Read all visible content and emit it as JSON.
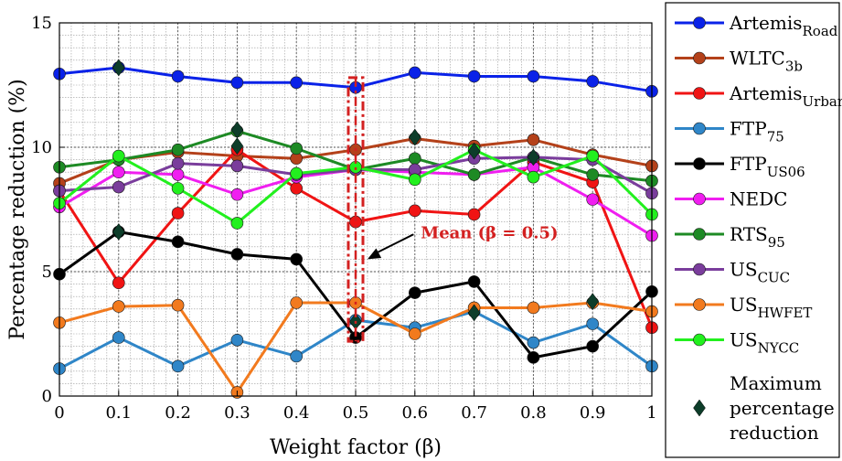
{
  "chart_data": {
    "type": "line",
    "xlabel": "Weight factor (β)",
    "ylabel": "Percentage reduction (%)",
    "xlim": [
      0,
      1
    ],
    "ylim": [
      0,
      15
    ],
    "grid": true,
    "legend_position": "right",
    "x": [
      0,
      0.1,
      0.2,
      0.3,
      0.4,
      0.5,
      0.6,
      0.7,
      0.8,
      0.9,
      1
    ],
    "x_tick_labels": [
      "0",
      "0.1",
      "0.2",
      "0.3",
      "0.4",
      "0.5",
      "0.6",
      "0.7",
      "0.8",
      "0.9",
      "1"
    ],
    "y_ticks": [
      0,
      5,
      10,
      15
    ],
    "y_tick_labels": [
      "0",
      "5",
      "10",
      "15"
    ],
    "series": [
      {
        "name": "Artemis",
        "sub": "Road",
        "color": "#0a22e8",
        "values": [
          12.95,
          13.2,
          12.85,
          12.6,
          12.6,
          12.4,
          13.0,
          12.85,
          12.85,
          12.65,
          12.25
        ]
      },
      {
        "name": "WLTC",
        "sub": "3b",
        "color": "#b4411a",
        "values": [
          8.55,
          9.5,
          9.8,
          9.65,
          9.55,
          9.9,
          10.35,
          10.05,
          10.3,
          9.7,
          9.25
        ]
      },
      {
        "name": "Artemis",
        "sub": "Urban",
        "color": "#f01414",
        "values": [
          8.25,
          4.55,
          7.35,
          9.9,
          8.35,
          7.0,
          7.45,
          7.3,
          9.4,
          8.6,
          2.75
        ]
      },
      {
        "name": "FTP",
        "sub": "75",
        "color": "#2f86c8",
        "values": [
          1.1,
          2.35,
          1.2,
          2.25,
          1.6,
          3.05,
          2.75,
          3.4,
          2.15,
          2.9,
          1.2
        ]
      },
      {
        "name": "FTP",
        "sub": "US06",
        "color": "#000000",
        "values": [
          4.9,
          6.6,
          6.2,
          5.7,
          5.5,
          2.35,
          4.15,
          4.6,
          1.55,
          2.0,
          4.2
        ]
      },
      {
        "name": "NEDC",
        "sub": "",
        "color": "#f01ef0",
        "values": [
          7.6,
          9.0,
          8.9,
          8.1,
          8.8,
          9.1,
          9.0,
          8.9,
          9.2,
          7.9,
          6.45
        ]
      },
      {
        "name": "RTS",
        "sub": "95",
        "color": "#1d8a24",
        "values": [
          9.2,
          9.5,
          9.9,
          10.65,
          9.95,
          9.1,
          9.55,
          8.9,
          9.6,
          8.9,
          8.65
        ]
      },
      {
        "name": "US",
        "sub": "CUC",
        "color": "#7a3d9c",
        "values": [
          8.25,
          8.4,
          9.35,
          9.25,
          8.9,
          9.1,
          9.1,
          9.55,
          9.6,
          9.5,
          8.15
        ]
      },
      {
        "name": "US",
        "sub": "HWFET",
        "color": "#f27a1e",
        "values": [
          2.95,
          3.6,
          3.65,
          0.15,
          3.75,
          3.75,
          2.5,
          3.55,
          3.55,
          3.75,
          3.4
        ]
      },
      {
        "name": "US",
        "sub": "NYCC",
        "color": "#22f01e",
        "values": [
          7.75,
          9.65,
          8.35,
          6.95,
          8.95,
          9.2,
          8.7,
          9.9,
          8.8,
          9.65,
          7.3
        ]
      }
    ],
    "max_markers": {
      "label_lines": [
        "Maximum",
        "percentage",
        "reduction"
      ],
      "color": "#0d3d2a",
      "points": [
        {
          "x": 0.1,
          "y": 13.2
        },
        {
          "x": 0.1,
          "y": 6.6
        },
        {
          "x": 0.3,
          "y": 10.7
        },
        {
          "x": 0.3,
          "y": 10.05
        },
        {
          "x": 0.5,
          "y": 3.0
        },
        {
          "x": 0.6,
          "y": 10.4
        },
        {
          "x": 0.7,
          "y": 9.85
        },
        {
          "x": 0.7,
          "y": 3.35
        },
        {
          "x": 0.8,
          "y": 9.6
        },
        {
          "x": 0.9,
          "y": 3.8
        }
      ]
    },
    "annotation": {
      "text": "Mean (β = 0.5)",
      "color": "#d32020",
      "box_x": 0.5,
      "box_ylim": [
        2.2,
        12.8
      ],
      "arrow_to": {
        "x": 0.52,
        "y": 5.5
      },
      "text_at": {
        "x": 0.61,
        "y": 6.35
      }
    }
  }
}
